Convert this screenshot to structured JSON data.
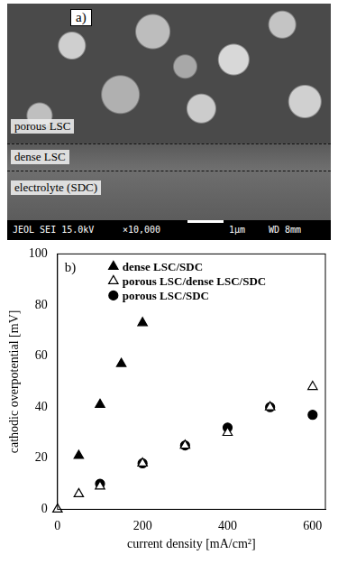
{
  "micrograph": {
    "label": "a)",
    "layers": [
      "porous LSC",
      "dense LSC",
      "electrolyte (SDC)"
    ],
    "instrument": "JEOL SEI 15.0kV",
    "magnification": "×10,000",
    "scale_bar": "1μm",
    "working_distance": "WD 8mm"
  },
  "chart_data": {
    "type": "scatter",
    "annotations": [
      "b)"
    ],
    "x_label": "current density [mA/cm²]",
    "y_label": "cathodic overpotential [mV]",
    "xlim": [
      0,
      630
    ],
    "xticks": [
      0,
      200,
      400,
      600
    ],
    "ylim": [
      0,
      100
    ],
    "yticks": [
      0,
      20,
      40,
      60,
      80,
      100
    ],
    "grid": false,
    "legend": "upper left",
    "series": [
      {
        "name": "dense LSC/SDC",
        "color": "#000000",
        "marker": "triangle",
        "x": [
          50,
          100,
          150,
          200
        ],
        "values": [
          21,
          41,
          57,
          73
        ]
      },
      {
        "name": "porous LSC/dense LSC/SDC",
        "color": "#000000",
        "marker": "triangle-open",
        "x": [
          0,
          50,
          100,
          200,
          300,
          400,
          500,
          600
        ],
        "values": [
          0,
          6,
          9,
          18,
          25,
          30,
          40,
          48
        ]
      },
      {
        "name": "porous LSC/SDC",
        "color": "#000000",
        "marker": "circle",
        "x": [
          100,
          200,
          300,
          400,
          500,
          600
        ],
        "values": [
          10,
          18,
          25,
          32,
          40,
          37
        ]
      }
    ]
  }
}
